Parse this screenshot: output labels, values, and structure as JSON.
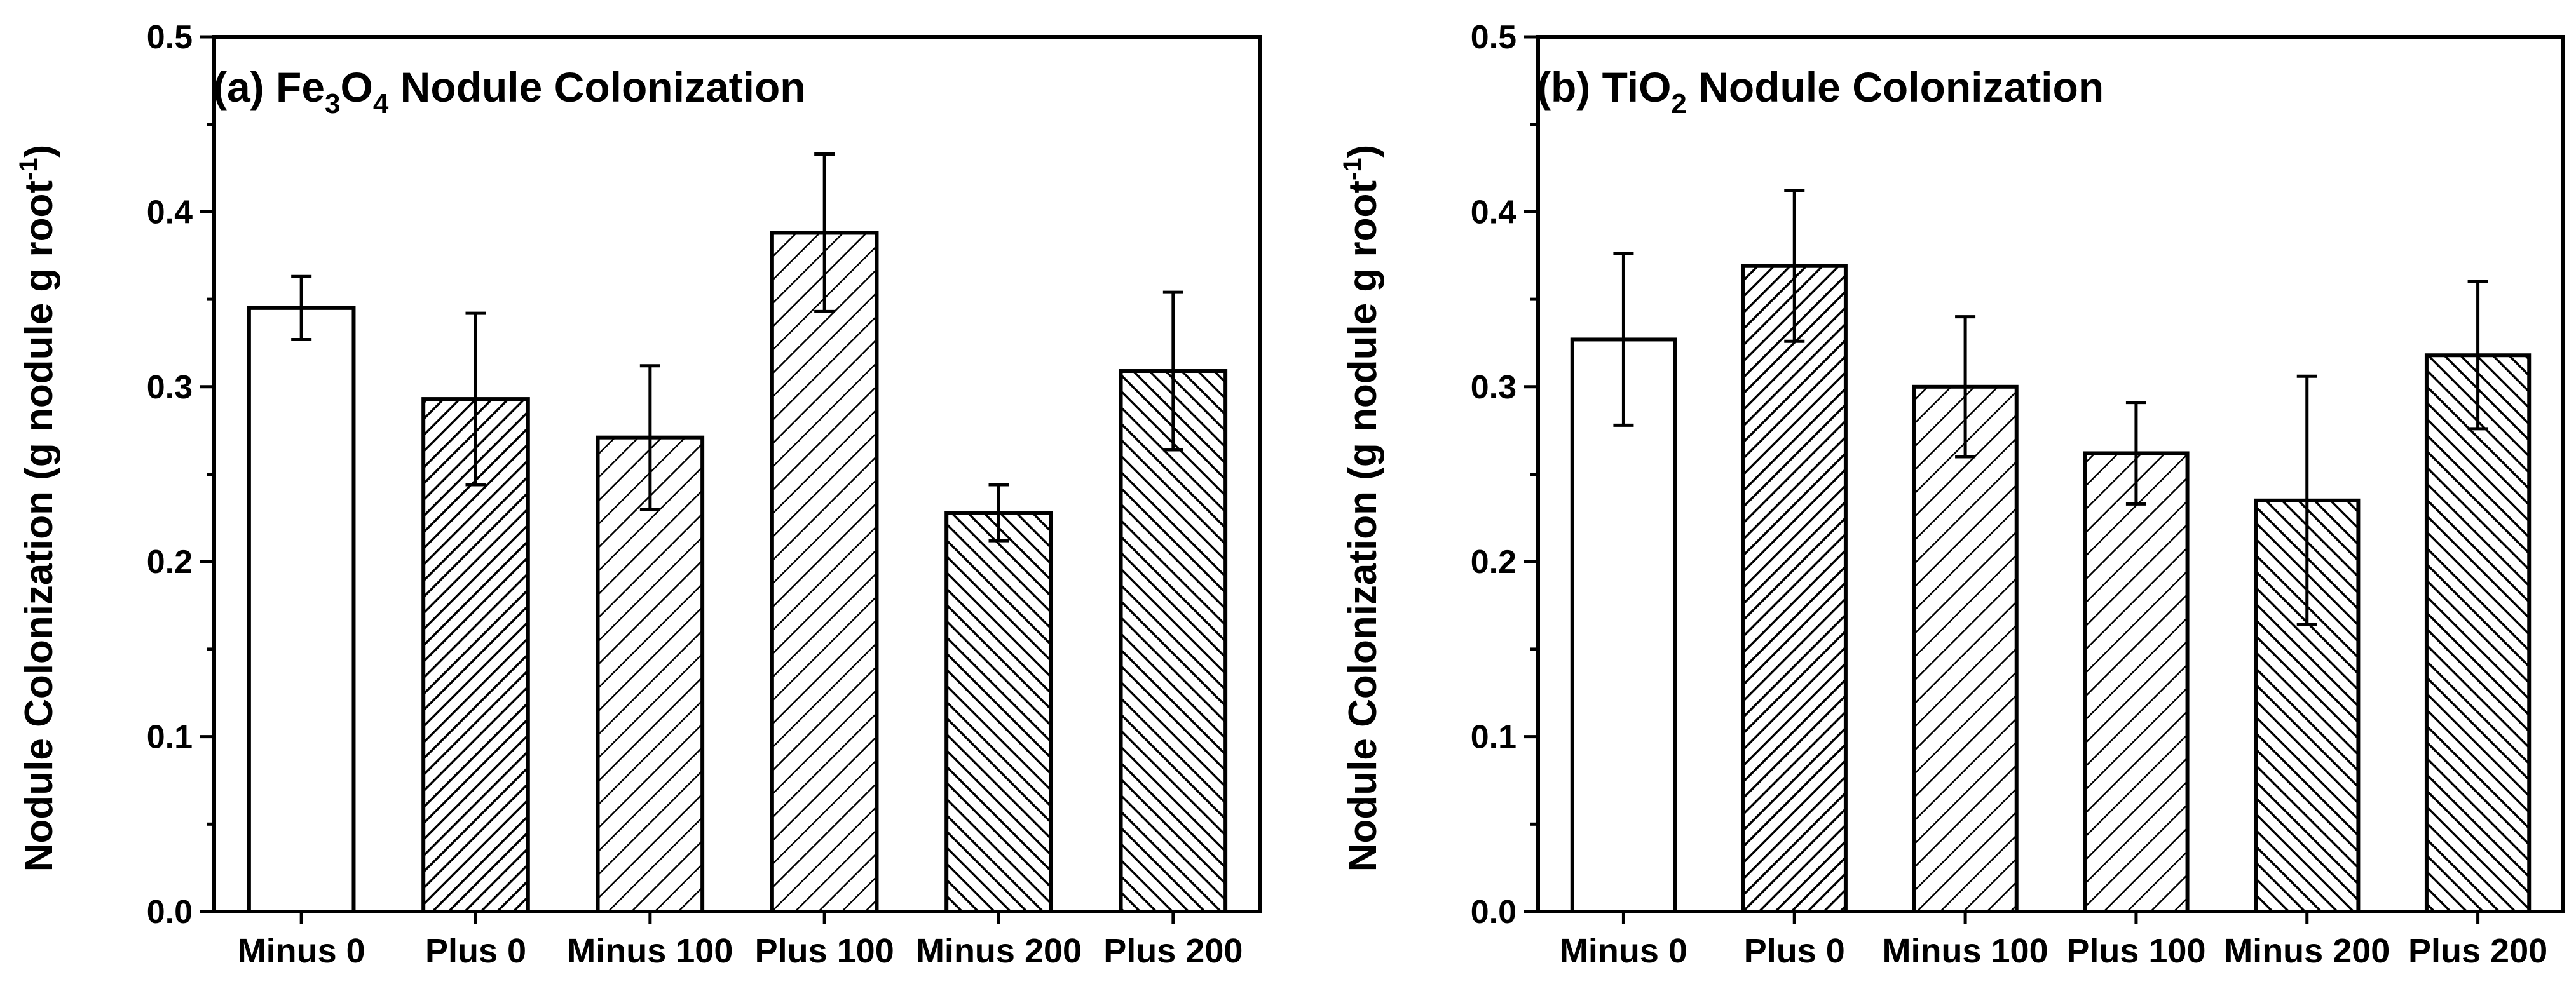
{
  "colors": {
    "stroke": "#000000",
    "fill": "#ffffff"
  },
  "chart_data": [
    {
      "type": "bar",
      "panel": "a",
      "title_parts": [
        "(a) Fe",
        "3",
        "O",
        "4",
        " Nodule Colonization"
      ],
      "ylabel_parts": [
        "Nodule Colonization (g nodule g root",
        "-1",
        ")"
      ],
      "xlabel": "",
      "ylim": [
        0,
        0.5
      ],
      "yticks": [
        "0.0",
        "0.1",
        "0.2",
        "0.3",
        "0.4",
        "0.5"
      ],
      "categories": [
        "Minus 0",
        "Plus 0",
        "Minus 100",
        "Plus 100",
        "Minus 200",
        "Plus 200"
      ],
      "values": [
        0.345,
        0.293,
        0.271,
        0.388,
        0.228,
        0.309
      ],
      "errors": [
        0.018,
        0.049,
        0.041,
        0.045,
        0.016,
        0.045
      ],
      "patterns": [
        "none",
        "dense-fwd",
        "sparse-fwd",
        "sparse-fwd",
        "dense-back",
        "dense-back"
      ]
    },
    {
      "type": "bar",
      "panel": "b",
      "title_parts": [
        "(b) TiO",
        "2",
        " Nodule Colonization"
      ],
      "ylabel_parts": [
        "Nodule Colonization (g nodule g root",
        "-1",
        ")"
      ],
      "xlabel": "",
      "ylim": [
        0,
        0.5
      ],
      "yticks": [
        "0.0",
        "0.1",
        "0.2",
        "0.3",
        "0.4",
        "0.5"
      ],
      "categories": [
        "Minus 0",
        "Plus 0",
        "Minus 100",
        "Plus 100",
        "Minus 200",
        "Plus 200"
      ],
      "values": [
        0.327,
        0.369,
        0.3,
        0.262,
        0.235,
        0.318
      ],
      "errors": [
        0.049,
        0.043,
        0.04,
        0.029,
        0.071,
        0.042
      ],
      "patterns": [
        "none",
        "dense-fwd",
        "sparse-fwd",
        "sparse-fwd",
        "dense-back",
        "dense-back"
      ]
    }
  ]
}
